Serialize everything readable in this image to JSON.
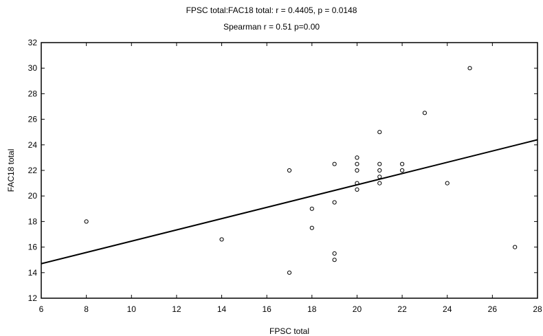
{
  "chart_data": {
    "type": "scatter",
    "title": "FPSC total:FAC18 total:   r = 0.4405, p = 0.0148",
    "subtitle": "Spearman r = 0.51 p=0.00",
    "xlabel": "FPSC total",
    "ylabel": "FAC18 total",
    "xlim": [
      6,
      28
    ],
    "ylim": [
      12,
      32
    ],
    "xticks": [
      6,
      8,
      10,
      12,
      14,
      16,
      18,
      20,
      22,
      24,
      26,
      28
    ],
    "yticks": [
      12,
      14,
      16,
      18,
      20,
      22,
      24,
      26,
      28,
      30,
      32
    ],
    "grid": false,
    "points": [
      {
        "x": 8,
        "y": 18
      },
      {
        "x": 14,
        "y": 16.6
      },
      {
        "x": 17,
        "y": 22
      },
      {
        "x": 17,
        "y": 14
      },
      {
        "x": 18,
        "y": 19
      },
      {
        "x": 18,
        "y": 17.5
      },
      {
        "x": 19,
        "y": 22.5
      },
      {
        "x": 19,
        "y": 19.5
      },
      {
        "x": 19,
        "y": 15.5
      },
      {
        "x": 19,
        "y": 15
      },
      {
        "x": 20,
        "y": 23
      },
      {
        "x": 20,
        "y": 22.5
      },
      {
        "x": 20,
        "y": 22
      },
      {
        "x": 20,
        "y": 21
      },
      {
        "x": 20,
        "y": 20.5
      },
      {
        "x": 21,
        "y": 25
      },
      {
        "x": 21,
        "y": 22.5
      },
      {
        "x": 21,
        "y": 22
      },
      {
        "x": 21,
        "y": 21.5
      },
      {
        "x": 21,
        "y": 21
      },
      {
        "x": 22,
        "y": 22.5
      },
      {
        "x": 22,
        "y": 22
      },
      {
        "x": 23,
        "y": 26.5
      },
      {
        "x": 24,
        "y": 21
      },
      {
        "x": 25,
        "y": 30
      },
      {
        "x": 27,
        "y": 16
      }
    ],
    "regression_line": {
      "x": [
        6,
        28
      ],
      "y": [
        14.7,
        24.4
      ]
    },
    "colors": {
      "marker": "#000000",
      "line": "#000000",
      "axis": "#000000"
    }
  }
}
